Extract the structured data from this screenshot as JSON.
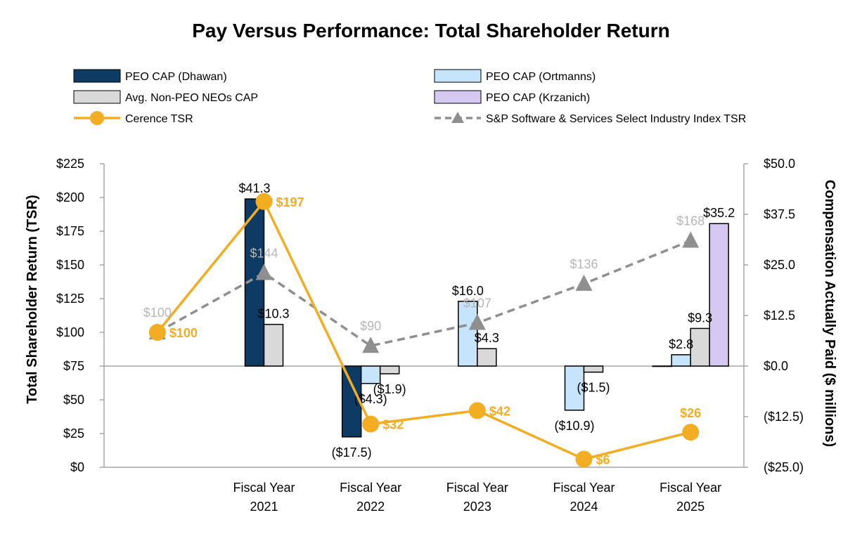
{
  "chart_data": {
    "type": "bar+line",
    "title": "Pay Versus Performance: Total Shareholder Return",
    "left_axis": {
      "label": "Total Shareholder Return (TSR)",
      "range": [
        0,
        225
      ],
      "ticks": [
        "$0",
        "$25",
        "$50",
        "$75",
        "$100",
        "$125",
        "$150",
        "$175",
        "$200",
        "$225"
      ]
    },
    "right_axis": {
      "label": "Compensation Actually Paid ($ millions)",
      "range": [
        -25,
        50
      ],
      "ticks": [
        "($25.0)",
        "($12.5)",
        "$0.0",
        "$12.5",
        "$25.0",
        "$37.5",
        "$50.0"
      ]
    },
    "categories": [
      {
        "line1": "",
        "line2": ""
      },
      {
        "line1": "Fiscal Year",
        "line2": "2021"
      },
      {
        "line1": "Fiscal Year",
        "line2": "2022"
      },
      {
        "line1": "Fiscal Year",
        "line2": "2023"
      },
      {
        "line1": "Fiscal Year",
        "line2": "2024"
      },
      {
        "line1": "Fiscal Year",
        "line2": "2025"
      }
    ],
    "colors": {
      "dhawan": "#0d3b63",
      "ortmanns": "#c6e4fb",
      "nonpeo": "#d9d9d9",
      "krzanich": "#d5c9f2",
      "tsr": "#f2ad23",
      "index": "#8f8f8f",
      "index_label": "#b7b7b7",
      "axis": "#a6a6a6"
    },
    "legend": [
      {
        "key": "dhawan",
        "label": "PEO CAP (Dhawan)",
        "marker": "bar"
      },
      {
        "key": "ortmanns",
        "label": "PEO CAP (Ortmanns)",
        "marker": "bar"
      },
      {
        "key": "nonpeo",
        "label": "Avg. Non-PEO NEOs CAP",
        "marker": "bar"
      },
      {
        "key": "krzanich",
        "label": "PEO CAP (Krzanich)",
        "marker": "bar"
      },
      {
        "key": "tsr",
        "label": "Cerence TSR",
        "marker": "line-circle"
      },
      {
        "key": "index",
        "label": "S&P Software & Services Select Industry Index TSR",
        "marker": "dash-triangle"
      }
    ],
    "bar_series": [
      {
        "key": "dhawan",
        "name": "PEO CAP (Dhawan)",
        "values": [
          null,
          41.3,
          -17.5,
          null,
          null,
          0.0
        ],
        "labels": [
          null,
          "$41.3",
          "($17.5)",
          null,
          null,
          null
        ]
      },
      {
        "key": "ortmanns",
        "name": "PEO CAP (Ortmanns)",
        "values": [
          null,
          null,
          -4.3,
          16.0,
          -10.9,
          2.8
        ],
        "labels": [
          null,
          null,
          "($4.3)",
          "$16.0",
          "($10.9)",
          "$2.8"
        ]
      },
      {
        "key": "nonpeo",
        "name": "Avg. Non-PEO NEOs CAP",
        "values": [
          null,
          10.3,
          -1.9,
          4.3,
          -1.5,
          9.3
        ],
        "labels": [
          null,
          "$10.3",
          "($1.9)",
          "$4.3",
          "($1.5)",
          "$9.3"
        ]
      },
      {
        "key": "krzanich",
        "name": "PEO CAP (Krzanich)",
        "values": [
          null,
          null,
          null,
          null,
          null,
          35.2
        ],
        "labels": [
          null,
          null,
          null,
          null,
          null,
          "$35.2"
        ]
      }
    ],
    "tsr": {
      "name": "Cerence TSR",
      "values": [
        100,
        197,
        32,
        42,
        6,
        26
      ],
      "labels": [
        "$100",
        "$197",
        "$32",
        "$42",
        "$6",
        "$26"
      ]
    },
    "index": {
      "name": "S&P Software & Services Select Industry Index TSR",
      "values": [
        100,
        144,
        90,
        107,
        136,
        168
      ],
      "labels": [
        "$100",
        "$144",
        "$90",
        "$107",
        "$136",
        "$168"
      ]
    }
  }
}
